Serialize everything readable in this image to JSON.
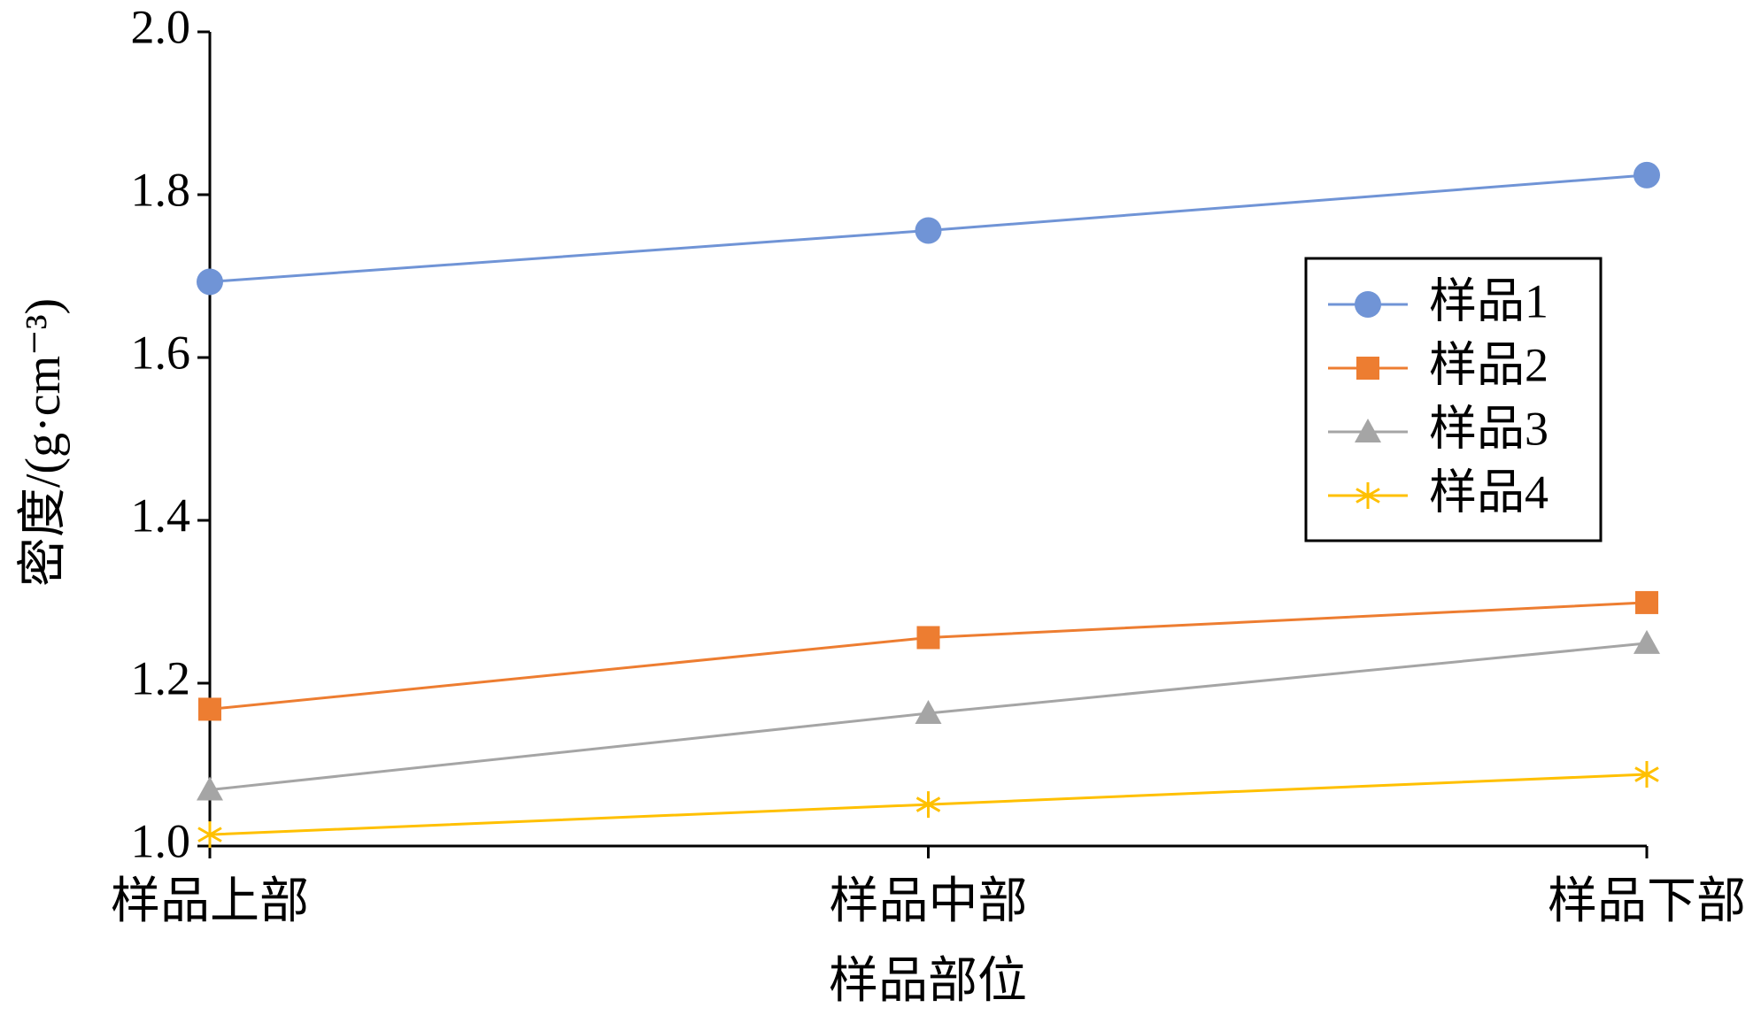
{
  "chart_data": {
    "type": "line",
    "x_label": "样品部位",
    "y_label": "密度/(g·cm⁻³)",
    "categories": [
      "样品上部",
      "样品中部",
      "样品下部"
    ],
    "ylim": [
      1.0,
      2.0
    ],
    "yticks": [
      {
        "value": 1.0,
        "label": "1.0"
      },
      {
        "value": 1.2,
        "label": "1.2"
      },
      {
        "value": 1.4,
        "label": "1.4"
      },
      {
        "value": 1.6,
        "label": "1.6"
      },
      {
        "value": 1.8,
        "label": "1.8"
      },
      {
        "value": 2.0,
        "label": "2.0"
      }
    ],
    "series": [
      {
        "name": "样品1",
        "color": "#7094d6",
        "marker": "circle",
        "values": [
          1.693,
          1.756,
          1.824
        ]
      },
      {
        "name": "样品2",
        "color": "#ed7d31",
        "marker": "square",
        "values": [
          1.168,
          1.256,
          1.299
        ]
      },
      {
        "name": "样品3",
        "color": "#a5a5a5",
        "marker": "triangle",
        "values": [
          1.069,
          1.163,
          1.249
        ]
      },
      {
        "name": "样品4",
        "color": "#ffc000",
        "marker": "star",
        "values": [
          1.014,
          1.051,
          1.088
        ]
      }
    ]
  }
}
